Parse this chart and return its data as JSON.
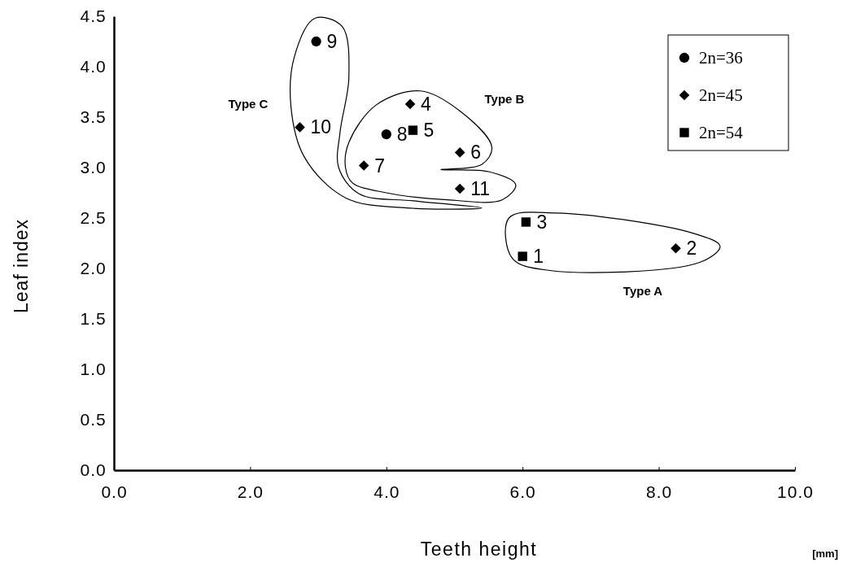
{
  "chart_data": {
    "type": "scatter",
    "xlabel": "Teeth height",
    "ylabel": "Leaf index",
    "xlim": [
      0,
      10
    ],
    "ylim": [
      0,
      4.5
    ],
    "xticks": [
      {
        "value": 0,
        "label": "0.0"
      },
      {
        "value": 2,
        "label": "2.0"
      },
      {
        "value": 4,
        "label": "4.0"
      },
      {
        "value": 6,
        "label": "6.0"
      },
      {
        "value": 8,
        "label": "8.0"
      },
      {
        "value": 10,
        "label": "10.0"
      }
    ],
    "yticks": [
      {
        "value": 0,
        "label": "0.0"
      },
      {
        "value": 0.5,
        "label": "0.5"
      },
      {
        "value": 1,
        "label": "1.0"
      },
      {
        "value": 1.5,
        "label": "1.5"
      },
      {
        "value": 2,
        "label": "2.0"
      },
      {
        "value": 2.5,
        "label": "2.5"
      },
      {
        "value": 3,
        "label": "3.0"
      },
      {
        "value": 3.5,
        "label": "3.5"
      },
      {
        "value": 4,
        "label": "4.0"
      },
      {
        "value": 4.5,
        "label": "4.5"
      }
    ],
    "legend": "top right",
    "grid": false,
    "series": [
      {
        "name": "2n=36",
        "color": "#000000",
        "marker": "circle",
        "x": [
          4.0,
          2.97
        ],
        "values": [
          3.33,
          4.25
        ]
      },
      {
        "name": "2n=45",
        "color": "#000000",
        "marker": "diamond",
        "x": [
          8.25,
          4.35,
          5.08,
          3.67,
          2.73,
          5.08
        ],
        "values": [
          2.2,
          3.63,
          3.15,
          3.02,
          3.4,
          2.79
        ]
      },
      {
        "name": "2n=54",
        "color": "#000000",
        "marker": "square",
        "x": [
          6.0,
          6.05,
          4.39
        ],
        "values": [
          2.12,
          2.46,
          3.37
        ]
      }
    ],
    "annotations": [
      {
        "text": "1",
        "x": 6.0,
        "y": 2.12
      },
      {
        "text": "2",
        "x": 8.25,
        "y": 2.2
      },
      {
        "text": "3",
        "x": 6.05,
        "y": 2.46
      },
      {
        "text": "4",
        "x": 4.35,
        "y": 3.63
      },
      {
        "text": "5",
        "x": 4.39,
        "y": 3.37
      },
      {
        "text": "6",
        "x": 5.08,
        "y": 3.15
      },
      {
        "text": "7",
        "x": 3.67,
        "y": 3.02
      },
      {
        "text": "8",
        "x": 4.0,
        "y": 3.33
      },
      {
        "text": "9",
        "x": 2.97,
        "y": 4.25
      },
      {
        "text": "10",
        "x": 2.73,
        "y": 3.4
      },
      {
        "text": "11",
        "x": 5.08,
        "y": 2.79
      },
      "Type A",
      "Type B",
      "Type C",
      "[mm]"
    ]
  }
}
